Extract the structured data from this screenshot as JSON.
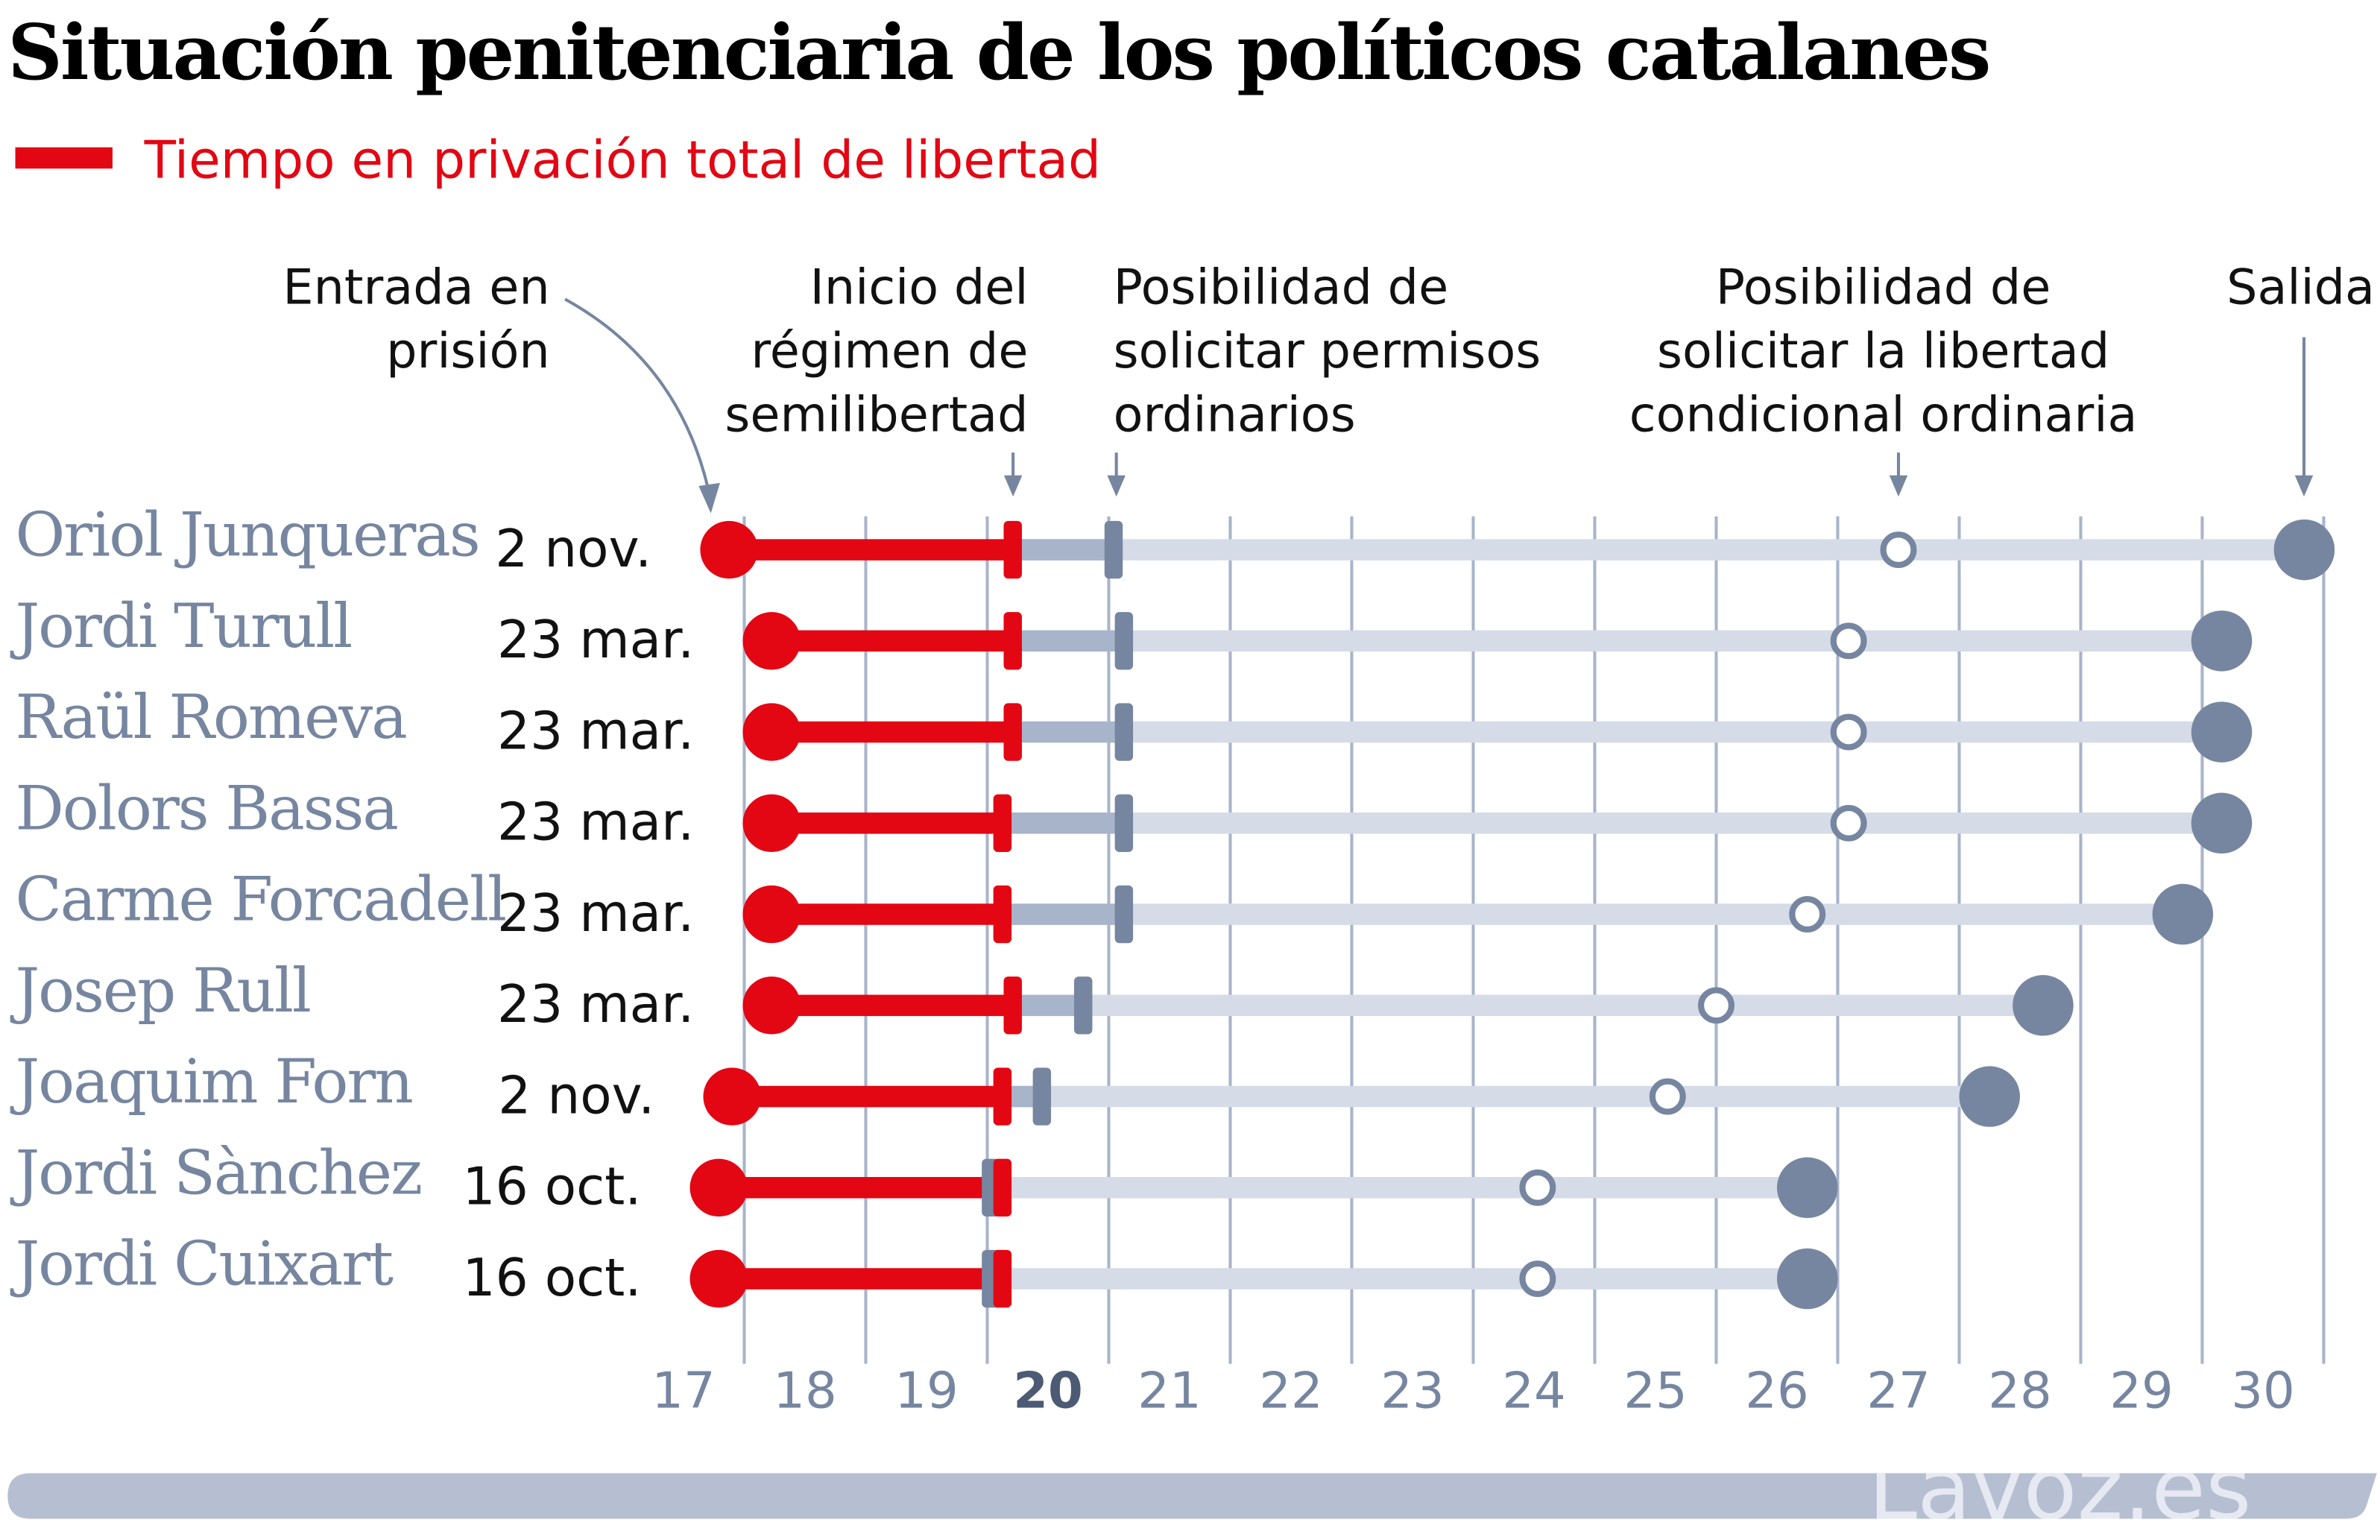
{
  "title": "Situación penitenciaria de los políticos catalanes",
  "legend": {
    "label": "Tiempo en privación total de libertad",
    "color": "#e30613"
  },
  "annotations": {
    "entrada": [
      "Entrada en",
      "prisión"
    ],
    "semilibertad": [
      "Inicio del",
      "régimen de",
      "semilibertad"
    ],
    "permisos": [
      "Posibilidad de",
      "solicitar permisos",
      "ordinarios"
    ],
    "condicional": [
      "Posibilidad de",
      "solicitar la libertad",
      "condicional ordinaria"
    ],
    "salida": [
      "Salida"
    ]
  },
  "logo": "Lavoz.es",
  "colors": {
    "red": "#e30613",
    "track": "#d5dbe7",
    "semi": "#a8b4ca",
    "marker": "#7686a0",
    "grid": "#a8b4ca",
    "banner": "#b6bed2"
  },
  "chart_data": {
    "type": "timeline",
    "title": "Situación penitenciaria de los políticos catalanes",
    "x_unit": "year (20xx)",
    "xlim": [
      17,
      31
    ],
    "x_ticks": [
      "17",
      "18",
      "19",
      "20",
      "21",
      "22",
      "23",
      "24",
      "25",
      "26",
      "27",
      "28",
      "29",
      "30"
    ],
    "highlight_tick": "20",
    "grid": true,
    "rows": [
      {
        "name": "Oriol Junqueras",
        "date": "2 nov.",
        "entrada": 17.875,
        "semilibertad": 20.21,
        "permisos": 21.04,
        "condicional": 27.5,
        "salida": 30.84
      },
      {
        "name": "Jordi Turull",
        "date": "23 mar.",
        "entrada": 18.225,
        "semilibertad": 20.21,
        "permisos": 21.125,
        "condicional": 27.09,
        "salida": 30.16
      },
      {
        "name": "Raül Romeva",
        "date": "23 mar.",
        "entrada": 18.225,
        "semilibertad": 20.21,
        "permisos": 21.125,
        "condicional": 27.09,
        "salida": 30.16
      },
      {
        "name": "Dolors Bassa",
        "date": "23 mar.",
        "entrada": 18.225,
        "semilibertad": 20.125,
        "permisos": 21.125,
        "condicional": 27.09,
        "salida": 30.16
      },
      {
        "name": "Carme Forcadell",
        "date": "23 mar.",
        "entrada": 18.225,
        "semilibertad": 20.125,
        "permisos": 21.125,
        "condicional": 26.75,
        "salida": 29.84
      },
      {
        "name": "Josep Rull",
        "date": "23 mar.",
        "entrada": 18.225,
        "semilibertad": 20.21,
        "permisos": 20.79,
        "condicional": 26.0,
        "salida": 28.69
      },
      {
        "name": "Joaquim Forn",
        "date": "2 nov.",
        "entrada": 17.9,
        "semilibertad": 20.125,
        "permisos": 20.45,
        "condicional": 25.6,
        "salida": 28.25
      },
      {
        "name": "Jordi Sànchez",
        "date": "16 oct.",
        "entrada": 17.79,
        "semilibertad": 20.125,
        "permisos": 20.03,
        "condicional": 24.53,
        "salida": 26.75
      },
      {
        "name": "Jordi Cuixart",
        "date": "16 oct.",
        "entrada": 17.79,
        "semilibertad": 20.125,
        "permisos": 20.03,
        "condicional": 24.53,
        "salida": 26.75
      }
    ]
  }
}
